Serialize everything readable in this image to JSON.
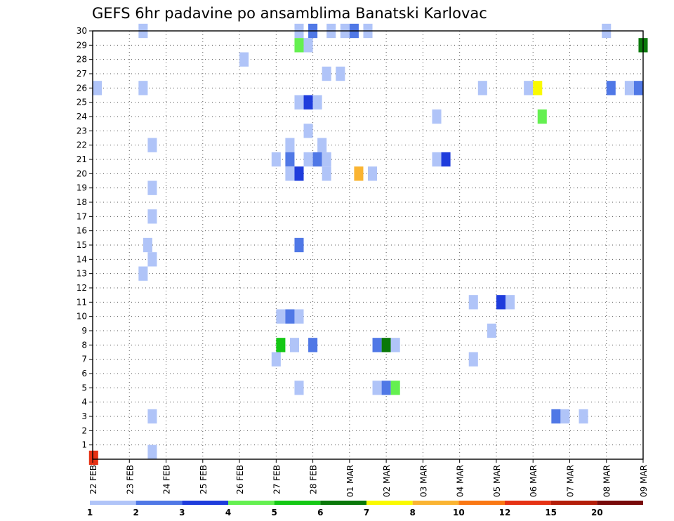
{
  "chart_data": {
    "type": "heatmap",
    "title": "GEFS 6hr padavine po ansamblima Banatski Karlovac",
    "xlabel": "",
    "ylabel": "",
    "x_ticks": [
      "22 FEB",
      "23 FEB",
      "24 FEB",
      "25 FEB",
      "26 FEB",
      "27 FEB",
      "28 FEB",
      "01 MAR",
      "02 MAR",
      "03 MAR",
      "04 MAR",
      "05 MAR",
      "06 MAR",
      "07 MAR",
      "08 MAR",
      "09 MAR"
    ],
    "y_ticks": [
      1,
      2,
      3,
      4,
      5,
      6,
      7,
      8,
      9,
      10,
      11,
      12,
      13,
      14,
      15,
      16,
      17,
      18,
      19,
      20,
      21,
      22,
      23,
      24,
      25,
      26,
      27,
      28,
      29,
      30
    ],
    "xlim": [
      0,
      60
    ],
    "ylim": [
      0,
      30
    ],
    "x_unit": "6-hour step from 22 FEB 00z",
    "grid": true,
    "colorbar": {
      "position": "bottom",
      "labels": [
        "1",
        "2",
        "3",
        "4",
        "5",
        "6",
        "7",
        "8",
        "10",
        "12",
        "15",
        "20"
      ],
      "colors": [
        "#b0c4f8",
        "#5078e6",
        "#1e3cdc",
        "#64f050",
        "#14c814",
        "#0a780a",
        "#fafa00",
        "#fab432",
        "#fa7814",
        "#e63214",
        "#b41e0a",
        "#780a0a"
      ]
    },
    "cells": [
      {
        "x": 5.5,
        "y": 30,
        "v": 1
      },
      {
        "x": 22.5,
        "y": 30,
        "v": 1
      },
      {
        "x": 24,
        "y": 30,
        "v": 2
      },
      {
        "x": 26,
        "y": 30,
        "v": 1
      },
      {
        "x": 27.5,
        "y": 30,
        "v": 1
      },
      {
        "x": 28.5,
        "y": 30,
        "v": 2
      },
      {
        "x": 30,
        "y": 30,
        "v": 1
      },
      {
        "x": 56,
        "y": 30,
        "v": 1
      },
      {
        "x": 22.5,
        "y": 29,
        "v": 4
      },
      {
        "x": 23.5,
        "y": 29,
        "v": 1
      },
      {
        "x": 60,
        "y": 29,
        "v": 6
      },
      {
        "x": 16.5,
        "y": 28,
        "v": 1
      },
      {
        "x": 25.5,
        "y": 27,
        "v": 1
      },
      {
        "x": 27,
        "y": 27,
        "v": 1
      },
      {
        "x": 0.5,
        "y": 26,
        "v": 1
      },
      {
        "x": 5.5,
        "y": 26,
        "v": 1
      },
      {
        "x": 42.5,
        "y": 26,
        "v": 1
      },
      {
        "x": 47.5,
        "y": 26,
        "v": 1
      },
      {
        "x": 48.5,
        "y": 26,
        "v": 7
      },
      {
        "x": 56.5,
        "y": 26,
        "v": 2
      },
      {
        "x": 58.5,
        "y": 26,
        "v": 1
      },
      {
        "x": 59.5,
        "y": 26,
        "v": 2
      },
      {
        "x": 22.5,
        "y": 25,
        "v": 1
      },
      {
        "x": 23.5,
        "y": 25,
        "v": 3
      },
      {
        "x": 24.5,
        "y": 25,
        "v": 1
      },
      {
        "x": 37.5,
        "y": 24,
        "v": 1
      },
      {
        "x": 49,
        "y": 24,
        "v": 4
      },
      {
        "x": 23.5,
        "y": 23,
        "v": 1
      },
      {
        "x": 6.5,
        "y": 22,
        "v": 1
      },
      {
        "x": 21.5,
        "y": 22,
        "v": 1
      },
      {
        "x": 25,
        "y": 22,
        "v": 1
      },
      {
        "x": 20,
        "y": 21,
        "v": 1
      },
      {
        "x": 21.5,
        "y": 21,
        "v": 2
      },
      {
        "x": 23.5,
        "y": 21,
        "v": 1
      },
      {
        "x": 24.5,
        "y": 21,
        "v": 2
      },
      {
        "x": 25.5,
        "y": 21,
        "v": 1
      },
      {
        "x": 37.5,
        "y": 21,
        "v": 1
      },
      {
        "x": 38.5,
        "y": 21,
        "v": 3
      },
      {
        "x": 21.5,
        "y": 20,
        "v": 1
      },
      {
        "x": 22.5,
        "y": 20,
        "v": 3
      },
      {
        "x": 25.5,
        "y": 20,
        "v": 1
      },
      {
        "x": 29,
        "y": 20,
        "v": 8
      },
      {
        "x": 30.5,
        "y": 20,
        "v": 1
      },
      {
        "x": 6.5,
        "y": 19,
        "v": 1
      },
      {
        "x": 6.5,
        "y": 17,
        "v": 1
      },
      {
        "x": 6,
        "y": 15,
        "v": 1
      },
      {
        "x": 22.5,
        "y": 15,
        "v": 2
      },
      {
        "x": 6.5,
        "y": 14,
        "v": 1
      },
      {
        "x": 5.5,
        "y": 13,
        "v": 1
      },
      {
        "x": 41.5,
        "y": 11,
        "v": 1
      },
      {
        "x": 44.5,
        "y": 11,
        "v": 3
      },
      {
        "x": 45.5,
        "y": 11,
        "v": 1
      },
      {
        "x": 20.5,
        "y": 10,
        "v": 1
      },
      {
        "x": 21.5,
        "y": 10,
        "v": 2
      },
      {
        "x": 22.5,
        "y": 10,
        "v": 1
      },
      {
        "x": 43.5,
        "y": 9,
        "v": 1
      },
      {
        "x": 20.5,
        "y": 8,
        "v": 5
      },
      {
        "x": 22,
        "y": 8,
        "v": 1
      },
      {
        "x": 24,
        "y": 8,
        "v": 2
      },
      {
        "x": 31,
        "y": 8,
        "v": 2
      },
      {
        "x": 32,
        "y": 8,
        "v": 6
      },
      {
        "x": 33,
        "y": 8,
        "v": 1
      },
      {
        "x": 20,
        "y": 7,
        "v": 1
      },
      {
        "x": 41.5,
        "y": 7,
        "v": 1
      },
      {
        "x": 22.5,
        "y": 5,
        "v": 1
      },
      {
        "x": 31,
        "y": 5,
        "v": 1
      },
      {
        "x": 32,
        "y": 5,
        "v": 2
      },
      {
        "x": 33,
        "y": 5,
        "v": 4
      },
      {
        "x": 6.5,
        "y": 3,
        "v": 1
      },
      {
        "x": 50.5,
        "y": 3,
        "v": 2
      },
      {
        "x": 51.5,
        "y": 3,
        "v": 1
      },
      {
        "x": 53.5,
        "y": 3,
        "v": 1
      },
      {
        "x": 6.5,
        "y": 0.5,
        "v": 1
      },
      {
        "x": 0.1,
        "y": 0.1,
        "v": 10
      }
    ]
  }
}
